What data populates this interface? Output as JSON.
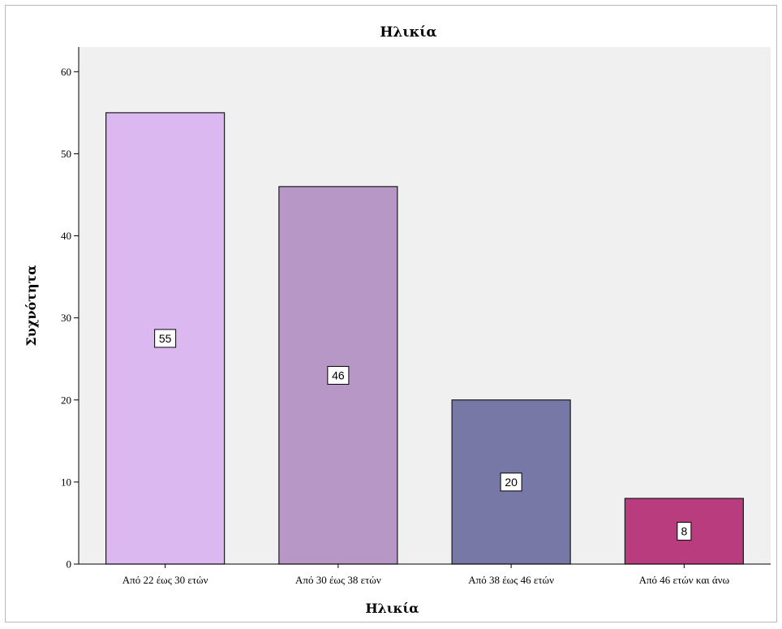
{
  "chart_data": {
    "type": "bar",
    "title": "Ηλικία",
    "xlabel": "Ηλικία",
    "ylabel": "Συχνότητα",
    "categories": [
      "Από 22 έως 30 ετών",
      "Από 30 έως 38 ετών",
      "Από 38 έως 46 ετών",
      "Από 46 ετών και άνω"
    ],
    "values": [
      55,
      46,
      20,
      8
    ],
    "data_labels": [
      "55",
      "46",
      "20",
      "8"
    ],
    "colors": [
      "#dbb8f0",
      "#b697c6",
      "#7878a6",
      "#b83c7e"
    ],
    "ylim": [
      0,
      63
    ],
    "yticks": [
      0,
      10,
      20,
      30,
      40,
      50,
      60
    ],
    "ytick_labels": [
      "0",
      "10",
      "20",
      "30",
      "40",
      "50",
      "60"
    ],
    "grid": false,
    "plot_background": "#f0f0f0"
  }
}
